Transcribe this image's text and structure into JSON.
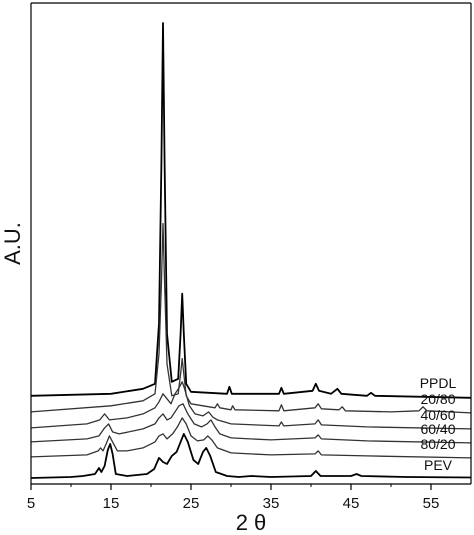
{
  "chart_data": {
    "type": "line",
    "xlabel": "2 θ",
    "ylabel": "A.U.",
    "xlim": [
      5,
      60
    ],
    "x_ticks": [
      5,
      15,
      25,
      35,
      45,
      55
    ],
    "y_ticks": "none",
    "grid": false,
    "series": [
      {
        "name": "PPDL",
        "color": "#000000",
        "baseline": 0.88,
        "points": [
          [
            5,
            0.88
          ],
          [
            15,
            0.9
          ],
          [
            19,
            0.95
          ],
          [
            20.5,
            1.0
          ],
          [
            21.0,
            1.6
          ],
          [
            21.3,
            3.2
          ],
          [
            21.5,
            4.6
          ],
          [
            21.7,
            3.2
          ],
          [
            22.0,
            1.5
          ],
          [
            22.6,
            1.02
          ],
          [
            23.4,
            1.05
          ],
          [
            23.7,
            1.5
          ],
          [
            23.9,
            1.9
          ],
          [
            24.1,
            1.5
          ],
          [
            24.4,
            1.0
          ],
          [
            25,
            0.92
          ],
          [
            29.5,
            0.9
          ],
          [
            29.8,
            0.97
          ],
          [
            30.1,
            0.9
          ],
          [
            36,
            0.9
          ],
          [
            36.3,
            0.96
          ],
          [
            36.6,
            0.9
          ],
          [
            40.2,
            0.93
          ],
          [
            40.6,
            1.0
          ],
          [
            41.0,
            0.93
          ],
          [
            42.5,
            0.9
          ],
          [
            43.3,
            0.95
          ],
          [
            43.8,
            0.9
          ],
          [
            47,
            0.88
          ],
          [
            47.5,
            0.91
          ],
          [
            48,
            0.88
          ],
          [
            60,
            0.86
          ]
        ]
      },
      {
        "name": "20/80",
        "color": "#333333",
        "baseline": 0.72,
        "points": [
          [
            5,
            0.72
          ],
          [
            15,
            0.78
          ],
          [
            19,
            0.83
          ],
          [
            20.5,
            0.9
          ],
          [
            21.0,
            1.3
          ],
          [
            21.3,
            2.0
          ],
          [
            21.5,
            2.6
          ],
          [
            21.7,
            2.0
          ],
          [
            22.0,
            1.2
          ],
          [
            22.6,
            0.88
          ],
          [
            23.4,
            0.9
          ],
          [
            23.7,
            1.1
          ],
          [
            23.9,
            1.25
          ],
          [
            24.1,
            1.1
          ],
          [
            24.4,
            0.88
          ],
          [
            25,
            0.8
          ],
          [
            28,
            0.76
          ],
          [
            28.3,
            0.8
          ],
          [
            28.6,
            0.76
          ],
          [
            30,
            0.74
          ],
          [
            30.2,
            0.78
          ],
          [
            30.5,
            0.74
          ],
          [
            36,
            0.73
          ],
          [
            36.3,
            0.79
          ],
          [
            36.6,
            0.73
          ],
          [
            40.5,
            0.76
          ],
          [
            40.9,
            0.8
          ],
          [
            41.3,
            0.75
          ],
          [
            43.5,
            0.74
          ],
          [
            43.9,
            0.77
          ],
          [
            44.3,
            0.73
          ],
          [
            50,
            0.72
          ],
          [
            53.5,
            0.73
          ],
          [
            54,
            0.77
          ],
          [
            54.5,
            0.73
          ],
          [
            60,
            0.71
          ]
        ]
      },
      {
        "name": "40/60",
        "color": "#333333",
        "baseline": 0.56,
        "points": [
          [
            5,
            0.56
          ],
          [
            12,
            0.6
          ],
          [
            13.6,
            0.64
          ],
          [
            14.2,
            0.7
          ],
          [
            14.8,
            0.64
          ],
          [
            17,
            0.66
          ],
          [
            19,
            0.7
          ],
          [
            20.5,
            0.76
          ],
          [
            21.0,
            0.82
          ],
          [
            21.5,
            0.9
          ],
          [
            22.0,
            0.85
          ],
          [
            22.5,
            0.8
          ],
          [
            23.0,
            0.9
          ],
          [
            23.5,
            0.96
          ],
          [
            23.9,
            1.02
          ],
          [
            24.2,
            0.95
          ],
          [
            24.8,
            0.78
          ],
          [
            25.5,
            0.7
          ],
          [
            26.5,
            0.68
          ],
          [
            27.2,
            0.72
          ],
          [
            27.7,
            0.67
          ],
          [
            28.3,
            0.64
          ],
          [
            30,
            0.6
          ],
          [
            36,
            0.58
          ],
          [
            36.3,
            0.62
          ],
          [
            36.6,
            0.58
          ],
          [
            40.5,
            0.6
          ],
          [
            40.9,
            0.64
          ],
          [
            41.3,
            0.59
          ],
          [
            47,
            0.57
          ],
          [
            60,
            0.55
          ]
        ]
      },
      {
        "name": "60/40",
        "color": "#333333",
        "baseline": 0.42,
        "points": [
          [
            5,
            0.42
          ],
          [
            12,
            0.45
          ],
          [
            13.5,
            0.48
          ],
          [
            14.2,
            0.56
          ],
          [
            14.7,
            0.6
          ],
          [
            15.2,
            0.52
          ],
          [
            16,
            0.5
          ],
          [
            19,
            0.55
          ],
          [
            20.5,
            0.6
          ],
          [
            21.0,
            0.66
          ],
          [
            21.5,
            0.7
          ],
          [
            22.0,
            0.64
          ],
          [
            22.5,
            0.66
          ],
          [
            23.0,
            0.72
          ],
          [
            23.5,
            0.78
          ],
          [
            24.0,
            0.8
          ],
          [
            24.6,
            0.7
          ],
          [
            25.4,
            0.6
          ],
          [
            26.3,
            0.57
          ],
          [
            27.0,
            0.6
          ],
          [
            27.5,
            0.64
          ],
          [
            28.0,
            0.57
          ],
          [
            28.6,
            0.5
          ],
          [
            30,
            0.46
          ],
          [
            35,
            0.44
          ],
          [
            40.5,
            0.46
          ],
          [
            40.9,
            0.49
          ],
          [
            41.3,
            0.45
          ],
          [
            47,
            0.43
          ],
          [
            60,
            0.41
          ]
        ]
      },
      {
        "name": "80/20",
        "color": "#333333",
        "baseline": 0.27,
        "points": [
          [
            5,
            0.27
          ],
          [
            12,
            0.29
          ],
          [
            13.4,
            0.33
          ],
          [
            13.7,
            0.36
          ],
          [
            14.0,
            0.33
          ],
          [
            14.4,
            0.4
          ],
          [
            14.8,
            0.48
          ],
          [
            15.2,
            0.42
          ],
          [
            15.8,
            0.33
          ],
          [
            17,
            0.33
          ],
          [
            19,
            0.36
          ],
          [
            20.5,
            0.42
          ],
          [
            21.0,
            0.48
          ],
          [
            21.5,
            0.5
          ],
          [
            22.0,
            0.45
          ],
          [
            22.7,
            0.5
          ],
          [
            23.3,
            0.57
          ],
          [
            23.9,
            0.66
          ],
          [
            24.4,
            0.6
          ],
          [
            25.0,
            0.48
          ],
          [
            25.8,
            0.43
          ],
          [
            26.6,
            0.44
          ],
          [
            27.1,
            0.48
          ],
          [
            27.6,
            0.44
          ],
          [
            28.3,
            0.36
          ],
          [
            30,
            0.31
          ],
          [
            35,
            0.29
          ],
          [
            40.5,
            0.3
          ],
          [
            40.9,
            0.33
          ],
          [
            41.3,
            0.29
          ],
          [
            47,
            0.28
          ],
          [
            60,
            0.26
          ]
        ]
      },
      {
        "name": "PEV",
        "color": "#000000",
        "baseline": 0.06,
        "points": [
          [
            5,
            0.06
          ],
          [
            10,
            0.07
          ],
          [
            11.5,
            0.08
          ],
          [
            13.0,
            0.1
          ],
          [
            13.5,
            0.16
          ],
          [
            13.8,
            0.12
          ],
          [
            14.2,
            0.18
          ],
          [
            14.6,
            0.34
          ],
          [
            14.9,
            0.4
          ],
          [
            15.2,
            0.3
          ],
          [
            15.6,
            0.1
          ],
          [
            17,
            0.08
          ],
          [
            19.5,
            0.1
          ],
          [
            20.4,
            0.15
          ],
          [
            21.0,
            0.26
          ],
          [
            21.5,
            0.22
          ],
          [
            22.0,
            0.2
          ],
          [
            22.6,
            0.28
          ],
          [
            23.2,
            0.32
          ],
          [
            23.7,
            0.42
          ],
          [
            24.1,
            0.5
          ],
          [
            24.6,
            0.42
          ],
          [
            25.3,
            0.24
          ],
          [
            25.9,
            0.2
          ],
          [
            26.5,
            0.32
          ],
          [
            26.9,
            0.36
          ],
          [
            27.4,
            0.28
          ],
          [
            28.1,
            0.12
          ],
          [
            29.5,
            0.08
          ],
          [
            31,
            0.07
          ],
          [
            32.5,
            0.08
          ],
          [
            35,
            0.07
          ],
          [
            40.0,
            0.08
          ],
          [
            40.6,
            0.13
          ],
          [
            41.2,
            0.08
          ],
          [
            45,
            0.08
          ],
          [
            45.7,
            0.1
          ],
          [
            46.3,
            0.08
          ],
          [
            52,
            0.07
          ],
          [
            60,
            0.065
          ]
        ]
      }
    ]
  }
}
